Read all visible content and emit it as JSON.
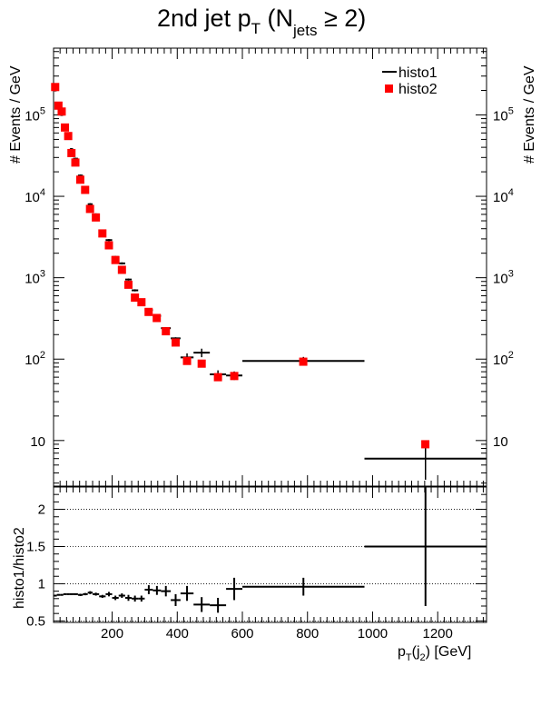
{
  "title": {
    "main": "2nd jet p",
    "sub_T": "T",
    "mid": " (N",
    "sub_jets": "jets",
    "end": " ≥ 2)"
  },
  "legend": {
    "histo1": "histo1",
    "histo2": "histo2"
  },
  "top_panel": {
    "ylabel": "# Events / GeV",
    "y_ticks": [
      {
        "label": "10",
        "sup": "",
        "value": 10
      },
      {
        "label": "10",
        "sup": "2",
        "value": 100
      },
      {
        "label": "10",
        "sup": "3",
        "value": 1000
      },
      {
        "label": "10",
        "sup": "4",
        "value": 10000
      },
      {
        "label": "10",
        "sup": "5",
        "value": 100000
      }
    ]
  },
  "bottom_panel": {
    "ylabel": "histo1/histo2",
    "y_ticks": [
      "0.5",
      "1",
      "1.5",
      "2"
    ],
    "x_ticks": [
      "200",
      "400",
      "600",
      "800",
      "1000",
      "1200"
    ],
    "xlabel": {
      "base": "p",
      "sub1": "T",
      "mid": "(j",
      "sub2": "2",
      "end": ") [GeV]"
    }
  },
  "colors": {
    "histo1": "#000000",
    "histo2": "#ff0000",
    "frame": "#000000"
  },
  "chart_data": [
    {
      "type": "scatter",
      "title": "2nd jet pT (Njets ≥ 2)",
      "ylabel": "# Events / GeV",
      "log_y": true,
      "xlim": [
        20,
        1350
      ],
      "ylim": [
        2,
        500000
      ],
      "series": [
        {
          "name": "histo1",
          "style": "horizontal bin bars with error bars",
          "bins": [
            {
              "x0": 20,
              "x1": 30,
              "y": 200000
            },
            {
              "x0": 30,
              "x1": 40,
              "y": 125000
            },
            {
              "x0": 40,
              "x1": 50,
              "y": 100000
            },
            {
              "x0": 50,
              "x1": 60,
              "y": 70000
            },
            {
              "x0": 60,
              "x1": 70,
              "y": 55000
            },
            {
              "x0": 70,
              "x1": 80,
              "y": 38000
            },
            {
              "x0": 80,
              "x1": 95,
              "y": 29000
            },
            {
              "x0": 95,
              "x1": 110,
              "y": 18000
            },
            {
              "x0": 110,
              "x1": 125,
              "y": 13000
            },
            {
              "x0": 125,
              "x1": 140,
              "y": 8000
            },
            {
              "x0": 140,
              "x1": 160,
              "y": 6000
            },
            {
              "x0": 160,
              "x1": 180,
              "y": 3800
            },
            {
              "x0": 180,
              "x1": 200,
              "y": 2900
            },
            {
              "x0": 200,
              "x1": 220,
              "y": 1800
            },
            {
              "x0": 220,
              "x1": 240,
              "y": 1500
            },
            {
              "x0": 240,
              "x1": 260,
              "y": 950
            },
            {
              "x0": 260,
              "x1": 280,
              "y": 700
            },
            {
              "x0": 280,
              "x1": 300,
              "y": 520
            },
            {
              "x0": 300,
              "x1": 325,
              "y": 400
            },
            {
              "x0": 325,
              "x1": 350,
              "y": 340
            },
            {
              "x0": 350,
              "x1": 380,
              "y": 240
            },
            {
              "x0": 380,
              "x1": 410,
              "y": 180
            },
            {
              "x0": 410,
              "x1": 450,
              "y": 105
            },
            {
              "x0": 450,
              "x1": 500,
              "y": 120
            },
            {
              "x0": 500,
              "x1": 550,
              "y": 65
            },
            {
              "x0": 550,
              "x1": 600,
              "y": 63
            },
            {
              "x0": 600,
              "x1": 975,
              "y": 95
            },
            {
              "x0": 975,
              "x1": 1350,
              "y": 6
            }
          ]
        },
        {
          "name": "histo2",
          "style": "red square markers",
          "points": [
            {
              "x": 25,
              "y": 220000
            },
            {
              "x": 35,
              "y": 130000
            },
            {
              "x": 45,
              "y": 110000
            },
            {
              "x": 55,
              "y": 70000
            },
            {
              "x": 65,
              "y": 55000
            },
            {
              "x": 75,
              "y": 34000
            },
            {
              "x": 87,
              "y": 26000
            },
            {
              "x": 102,
              "y": 16000
            },
            {
              "x": 117,
              "y": 12000
            },
            {
              "x": 132,
              "y": 7000
            },
            {
              "x": 150,
              "y": 5500
            },
            {
              "x": 170,
              "y": 3500
            },
            {
              "x": 190,
              "y": 2500
            },
            {
              "x": 210,
              "y": 1650
            },
            {
              "x": 230,
              "y": 1250
            },
            {
              "x": 250,
              "y": 820
            },
            {
              "x": 270,
              "y": 570
            },
            {
              "x": 290,
              "y": 500
            },
            {
              "x": 312,
              "y": 380
            },
            {
              "x": 337,
              "y": 320
            },
            {
              "x": 365,
              "y": 220
            },
            {
              "x": 395,
              "y": 160
            },
            {
              "x": 430,
              "y": 95
            },
            {
              "x": 475,
              "y": 88
            },
            {
              "x": 525,
              "y": 60
            },
            {
              "x": 575,
              "y": 62
            },
            {
              "x": 787,
              "y": 93
            },
            {
              "x": 1162,
              "y": 9
            }
          ]
        }
      ]
    },
    {
      "type": "scatter",
      "title": "",
      "ylabel": "histo1/histo2",
      "xlabel": "pT(j2) [GeV]",
      "xlim": [
        20,
        1350
      ],
      "ylim": [
        0.48,
        2.3
      ],
      "series": [
        {
          "name": "histo1/histo2",
          "style": "crosses with x-extent and error bars",
          "bins": [
            {
              "x0": 20,
              "x1": 30,
              "y": 0.84,
              "err": 0.01
            },
            {
              "x0": 30,
              "x1": 40,
              "y": 0.85,
              "err": 0.01
            },
            {
              "x0": 40,
              "x1": 50,
              "y": 0.85,
              "err": 0.01
            },
            {
              "x0": 50,
              "x1": 60,
              "y": 0.86,
              "err": 0.01
            },
            {
              "x0": 60,
              "x1": 70,
              "y": 0.86,
              "err": 0.01
            },
            {
              "x0": 70,
              "x1": 80,
              "y": 0.86,
              "err": 0.01
            },
            {
              "x0": 80,
              "x1": 95,
              "y": 0.86,
              "err": 0.01
            },
            {
              "x0": 95,
              "x1": 110,
              "y": 0.85,
              "err": 0.015
            },
            {
              "x0": 110,
              "x1": 125,
              "y": 0.86,
              "err": 0.015
            },
            {
              "x0": 125,
              "x1": 140,
              "y": 0.88,
              "err": 0.02
            },
            {
              "x0": 140,
              "x1": 160,
              "y": 0.86,
              "err": 0.02
            },
            {
              "x0": 160,
              "x1": 180,
              "y": 0.83,
              "err": 0.02
            },
            {
              "x0": 180,
              "x1": 200,
              "y": 0.86,
              "err": 0.03
            },
            {
              "x0": 200,
              "x1": 220,
              "y": 0.81,
              "err": 0.03
            },
            {
              "x0": 220,
              "x1": 240,
              "y": 0.84,
              "err": 0.03
            },
            {
              "x0": 240,
              "x1": 260,
              "y": 0.81,
              "err": 0.04
            },
            {
              "x0": 260,
              "x1": 280,
              "y": 0.8,
              "err": 0.04
            },
            {
              "x0": 280,
              "x1": 300,
              "y": 0.8,
              "err": 0.04
            },
            {
              "x0": 300,
              "x1": 325,
              "y": 0.92,
              "err": 0.06
            },
            {
              "x0": 325,
              "x1": 350,
              "y": 0.91,
              "err": 0.06
            },
            {
              "x0": 350,
              "x1": 380,
              "y": 0.9,
              "err": 0.07
            },
            {
              "x0": 380,
              "x1": 410,
              "y": 0.78,
              "err": 0.08
            },
            {
              "x0": 410,
              "x1": 450,
              "y": 0.87,
              "err": 0.1
            },
            {
              "x0": 450,
              "x1": 500,
              "y": 0.72,
              "err": 0.1
            },
            {
              "x0": 500,
              "x1": 550,
              "y": 0.71,
              "err": 0.1
            },
            {
              "x0": 550,
              "x1": 600,
              "y": 0.93,
              "err": 0.15
            },
            {
              "x0": 600,
              "x1": 975,
              "y": 0.96,
              "err": 0.12
            },
            {
              "x0": 975,
              "x1": 1350,
              "y": 1.5,
              "err": 0.8
            }
          ]
        }
      ]
    }
  ]
}
